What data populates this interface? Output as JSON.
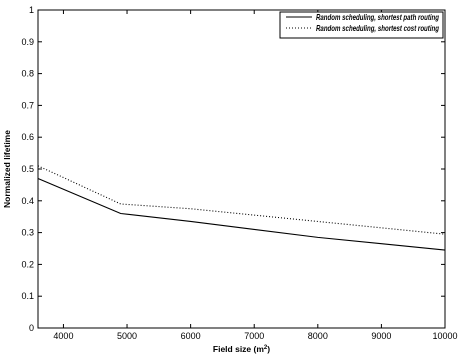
{
  "chart_data": {
    "type": "line",
    "title": "",
    "xlabel": "Field size (m",
    "xlabel_sup": "2",
    "xlabel_end": ")",
    "ylabel": "Normalized lifetime",
    "x": [
      3600,
      4900,
      6000,
      7000,
      8000,
      9000,
      10000
    ],
    "xlim": [
      3600,
      10000
    ],
    "ylim": [
      0,
      1
    ],
    "xticks": [
      "4000",
      "5000",
      "6000",
      "7000",
      "8000",
      "9000",
      "10000"
    ],
    "yticks": [
      "0",
      "0.1",
      "0.2",
      "0.3",
      "0.4",
      "0.5",
      "0.6",
      "0.7",
      "0.8",
      "0.9",
      "1"
    ],
    "grid": false,
    "legend_position": "top-right",
    "series": [
      {
        "name": "Random scheduling, shortest path routing",
        "style": "solid",
        "color": "#000000",
        "values": [
          0.47,
          0.36,
          0.335,
          0.31,
          0.285,
          0.265,
          0.245
        ]
      },
      {
        "name": "Random scheduling, shortest cost routing",
        "style": "dotted",
        "color": "#000000",
        "values": [
          0.51,
          0.39,
          0.375,
          0.355,
          0.335,
          0.315,
          0.295
        ]
      }
    ]
  }
}
